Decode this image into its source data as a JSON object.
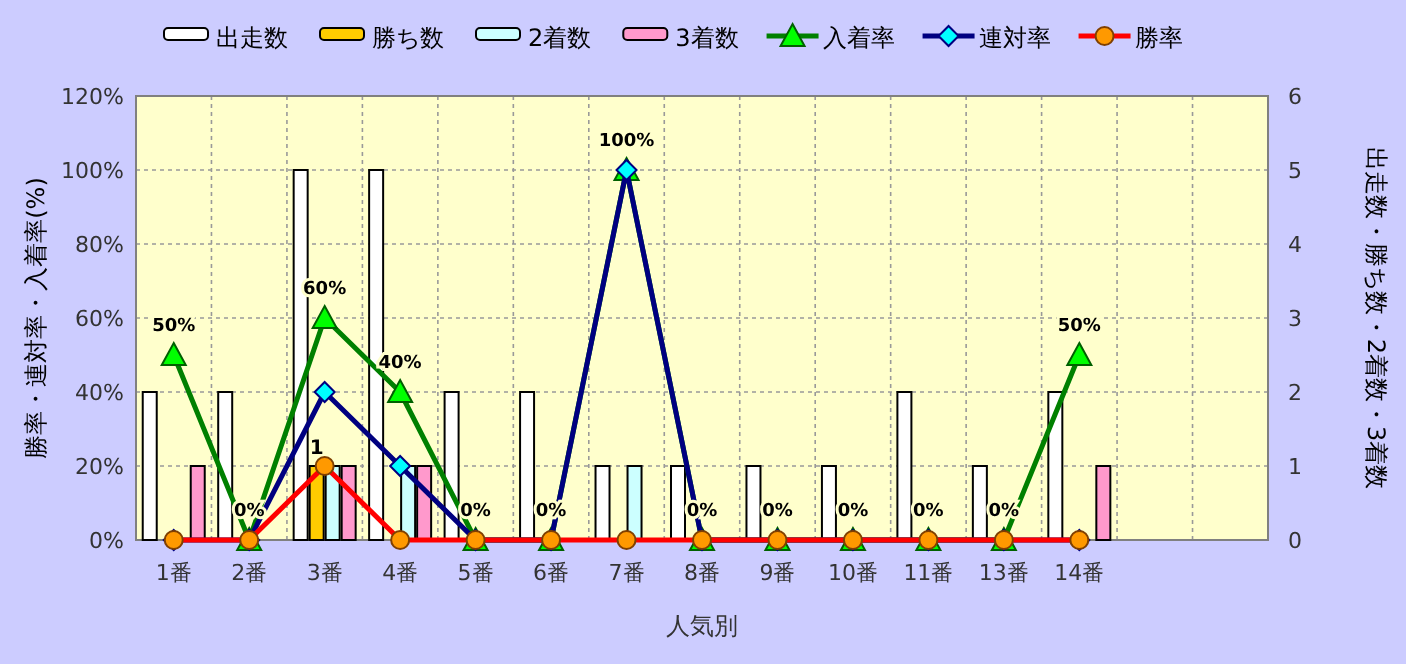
{
  "chart_data": {
    "type": "bar",
    "xlabel": "人気別",
    "ylabel": "勝率・連対率・入着率(%)",
    "y2label": "出走数・勝ち数・2着数・3着数",
    "categories": [
      "1番",
      "2番",
      "3番",
      "4番",
      "5番",
      "6番",
      "7番",
      "8番",
      "9番",
      "10番",
      "11番",
      "13番",
      "14番",
      null,
      null
    ],
    "series": [
      {
        "name": "出走数",
        "axis": "y2",
        "color": "#ffffff",
        "values": [
          2,
          2,
          5,
          5,
          2,
          2,
          1,
          1,
          1,
          1,
          2,
          1,
          2,
          null,
          null
        ]
      },
      {
        "name": "勝ち数",
        "axis": "y2",
        "color": "#ffcc00",
        "values": [
          0,
          0,
          1,
          0,
          0,
          0,
          0,
          0,
          0,
          0,
          0,
          0,
          0,
          null,
          null
        ],
        "value_labels": [
          null,
          null,
          "1",
          null,
          null,
          null,
          null,
          null,
          null,
          null,
          null,
          null,
          null,
          null,
          null
        ]
      },
      {
        "name": "2着数",
        "axis": "y2",
        "color": "#ccffff",
        "values": [
          0,
          0,
          1,
          1,
          0,
          0,
          1,
          0,
          0,
          0,
          0,
          0,
          0,
          null,
          null
        ]
      },
      {
        "name": "3着数",
        "axis": "y2",
        "color": "#ff99cc",
        "values": [
          1,
          0,
          1,
          1,
          0,
          0,
          0,
          0,
          0,
          0,
          0,
          0,
          1,
          null,
          null
        ]
      },
      {
        "name": "入着率",
        "type": "line",
        "marker": "triangle",
        "color": "#008000",
        "values": [
          50,
          0,
          60,
          40,
          0,
          0,
          100,
          0,
          0,
          0,
          0,
          0,
          50,
          null,
          null
        ],
        "value_labels": [
          "50%",
          "0%",
          "60%",
          "40%",
          "0%",
          "0%",
          "100%",
          "0%",
          "0%",
          "0%",
          "0%",
          "0%",
          "50%",
          null,
          null
        ]
      },
      {
        "name": "連対率",
        "type": "line",
        "marker": "diamond",
        "color": "#000080",
        "values": [
          0,
          0,
          40,
          20,
          0,
          0,
          100,
          0,
          0,
          0,
          0,
          0,
          0,
          null,
          null
        ]
      },
      {
        "name": "勝率",
        "type": "line",
        "marker": "circle",
        "color": "#ff0000",
        "values": [
          0,
          0,
          20,
          0,
          0,
          0,
          0,
          0,
          0,
          0,
          0,
          0,
          0,
          null,
          null
        ]
      }
    ],
    "ylim": [
      0,
      120
    ],
    "yticks": [
      {
        "value": 0,
        "label": "0%"
      },
      {
        "value": 20,
        "label": "20%"
      },
      {
        "value": 40,
        "label": "40%"
      },
      {
        "value": 60,
        "label": "60%"
      },
      {
        "value": 80,
        "label": "80%"
      },
      {
        "value": 100,
        "label": "100%"
      },
      {
        "value": 120,
        "label": "120%"
      }
    ],
    "y2lim": [
      0,
      6
    ],
    "y2ticks": [
      0,
      1,
      2,
      3,
      4,
      5,
      6
    ],
    "grid": true,
    "legend": "top",
    "line_style": "solid"
  }
}
